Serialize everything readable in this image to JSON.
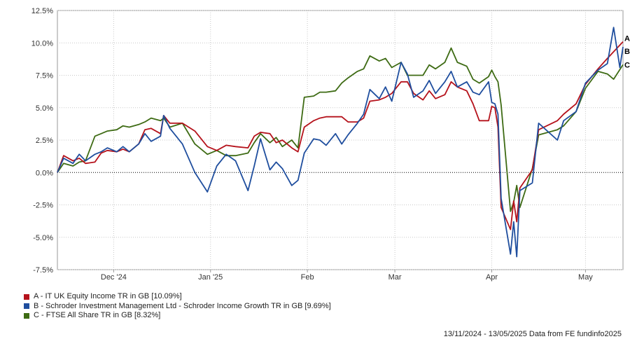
{
  "chart_data": {
    "type": "line",
    "ylim": [
      -7.5,
      12.5
    ],
    "yticks": [
      -7.5,
      -5.0,
      -2.5,
      0.0,
      2.5,
      5.0,
      7.5,
      10.0,
      12.5
    ],
    "ytick_labels": [
      "-7.5%",
      "-5.0%",
      "-2.5%",
      "0.0%",
      "2.5%",
      "5.0%",
      "7.5%",
      "10.0%",
      "12.5%"
    ],
    "xlim": [
      "2024-11-13",
      "2025-05-13"
    ],
    "xticks": [
      "2024-12-01",
      "2025-01-01",
      "2025-02-01",
      "2025-03-01",
      "2025-04-01",
      "2025-05-01"
    ],
    "xtick_labels": [
      "Dec '24",
      "Jan '25",
      "Feb",
      "Mar",
      "Apr",
      "May"
    ],
    "grid": true,
    "zero_line": true,
    "legend_position": "bottom-left",
    "series": [
      {
        "name": "A - IT UK Equity Income TR in GB [10.09%]",
        "end_label": "A",
        "color": "#b5121b",
        "points": [
          [
            "2024-11-13",
            0.0
          ],
          [
            "2024-11-15",
            1.3
          ],
          [
            "2024-11-18",
            0.9
          ],
          [
            "2024-11-20",
            1.1
          ],
          [
            "2024-11-22",
            0.7
          ],
          [
            "2024-11-25",
            0.8
          ],
          [
            "2024-11-27",
            1.5
          ],
          [
            "2024-11-29",
            1.7
          ],
          [
            "2024-12-02",
            1.6
          ],
          [
            "2024-12-04",
            1.8
          ],
          [
            "2024-12-06",
            1.6
          ],
          [
            "2024-12-09",
            2.2
          ],
          [
            "2024-12-11",
            3.3
          ],
          [
            "2024-12-13",
            3.4
          ],
          [
            "2024-12-16",
            3.0
          ],
          [
            "2024-12-17",
            4.4
          ],
          [
            "2024-12-19",
            3.8
          ],
          [
            "2024-12-23",
            3.8
          ],
          [
            "2024-12-27",
            3.2
          ],
          [
            "2024-12-31",
            2.0
          ],
          [
            "2025-01-03",
            1.7
          ],
          [
            "2025-01-06",
            2.1
          ],
          [
            "2025-01-09",
            2.0
          ],
          [
            "2025-01-13",
            1.9
          ],
          [
            "2025-01-15",
            2.8
          ],
          [
            "2025-01-17",
            3.1
          ],
          [
            "2025-01-20",
            3.0
          ],
          [
            "2025-01-22",
            2.3
          ],
          [
            "2025-01-24",
            2.5
          ],
          [
            "2025-01-27",
            1.9
          ],
          [
            "2025-01-29",
            1.6
          ],
          [
            "2025-01-31",
            3.5
          ],
          [
            "2025-02-03",
            4.0
          ],
          [
            "2025-02-05",
            4.2
          ],
          [
            "2025-02-07",
            4.3
          ],
          [
            "2025-02-10",
            4.3
          ],
          [
            "2025-02-12",
            4.3
          ],
          [
            "2025-02-14",
            3.9
          ],
          [
            "2025-02-17",
            3.9
          ],
          [
            "2025-02-19",
            4.2
          ],
          [
            "2025-02-21",
            5.5
          ],
          [
            "2025-02-24",
            5.6
          ],
          [
            "2025-02-26",
            5.8
          ],
          [
            "2025-02-28",
            6.1
          ],
          [
            "2025-03-03",
            7.0
          ],
          [
            "2025-03-05",
            7.0
          ],
          [
            "2025-03-07",
            6.1
          ],
          [
            "2025-03-10",
            5.6
          ],
          [
            "2025-03-12",
            6.3
          ],
          [
            "2025-03-14",
            5.7
          ],
          [
            "2025-03-17",
            6.0
          ],
          [
            "2025-03-19",
            7.0
          ],
          [
            "2025-03-21",
            6.6
          ],
          [
            "2025-03-24",
            6.3
          ],
          [
            "2025-03-26",
            5.3
          ],
          [
            "2025-03-28",
            4.0
          ],
          [
            "2025-03-31",
            4.0
          ],
          [
            "2025-04-01",
            5.1
          ],
          [
            "2025-04-02",
            5.0
          ],
          [
            "2025-04-03",
            3.5
          ],
          [
            "2025-04-04",
            -2.7
          ],
          [
            "2025-04-07",
            -4.4
          ],
          [
            "2025-04-08",
            -2.2
          ],
          [
            "2025-04-09",
            -3.8
          ],
          [
            "2025-04-10",
            -1.2
          ],
          [
            "2025-04-14",
            0.2
          ],
          [
            "2025-04-16",
            3.3
          ],
          [
            "2025-04-22",
            4.0
          ],
          [
            "2025-04-24",
            4.5
          ],
          [
            "2025-04-28",
            5.3
          ],
          [
            "2025-05-01",
            6.8
          ],
          [
            "2025-05-05",
            8.0
          ],
          [
            "2025-05-08",
            8.8
          ],
          [
            "2025-05-13",
            10.09
          ]
        ]
      },
      {
        "name": "B - Schroder Investment Management Ltd - Schroder Income Growth TR in GB [9.69%]",
        "end_label": "B",
        "color": "#1f4e9e",
        "points": [
          [
            "2024-11-13",
            0.0
          ],
          [
            "2024-11-15",
            1.1
          ],
          [
            "2024-11-18",
            0.7
          ],
          [
            "2024-11-20",
            1.4
          ],
          [
            "2024-11-22",
            0.9
          ],
          [
            "2024-11-25",
            1.4
          ],
          [
            "2024-11-27",
            1.6
          ],
          [
            "2024-11-29",
            1.9
          ],
          [
            "2024-12-02",
            1.6
          ],
          [
            "2024-12-04",
            2.0
          ],
          [
            "2024-12-06",
            1.6
          ],
          [
            "2024-12-09",
            2.2
          ],
          [
            "2024-12-11",
            3.0
          ],
          [
            "2024-12-13",
            2.4
          ],
          [
            "2024-12-16",
            2.8
          ],
          [
            "2024-12-17",
            4.4
          ],
          [
            "2024-12-19",
            3.4
          ],
          [
            "2024-12-23",
            2.2
          ],
          [
            "2024-12-27",
            0.0
          ],
          [
            "2024-12-31",
            -1.5
          ],
          [
            "2025-01-03",
            0.5
          ],
          [
            "2025-01-06",
            1.4
          ],
          [
            "2025-01-09",
            0.9
          ],
          [
            "2025-01-13",
            -1.4
          ],
          [
            "2025-01-15",
            0.5
          ],
          [
            "2025-01-17",
            2.6
          ],
          [
            "2025-01-20",
            0.2
          ],
          [
            "2025-01-22",
            0.8
          ],
          [
            "2025-01-24",
            0.3
          ],
          [
            "2025-01-27",
            -1.0
          ],
          [
            "2025-01-29",
            -0.6
          ],
          [
            "2025-01-31",
            1.5
          ],
          [
            "2025-02-03",
            2.6
          ],
          [
            "2025-02-05",
            2.5
          ],
          [
            "2025-02-07",
            2.1
          ],
          [
            "2025-02-10",
            3.0
          ],
          [
            "2025-02-12",
            2.2
          ],
          [
            "2025-02-14",
            2.9
          ],
          [
            "2025-02-17",
            3.8
          ],
          [
            "2025-02-19",
            4.5
          ],
          [
            "2025-02-21",
            6.4
          ],
          [
            "2025-02-24",
            5.7
          ],
          [
            "2025-02-26",
            6.6
          ],
          [
            "2025-02-28",
            5.5
          ],
          [
            "2025-03-03",
            8.5
          ],
          [
            "2025-03-05",
            7.6
          ],
          [
            "2025-03-07",
            5.8
          ],
          [
            "2025-03-10",
            6.3
          ],
          [
            "2025-03-12",
            7.1
          ],
          [
            "2025-03-14",
            6.1
          ],
          [
            "2025-03-17",
            7.0
          ],
          [
            "2025-03-19",
            7.8
          ],
          [
            "2025-03-21",
            6.6
          ],
          [
            "2025-03-24",
            7.0
          ],
          [
            "2025-03-26",
            6.2
          ],
          [
            "2025-03-28",
            6.0
          ],
          [
            "2025-03-31",
            7.0
          ],
          [
            "2025-04-01",
            5.4
          ],
          [
            "2025-04-02",
            5.3
          ],
          [
            "2025-04-03",
            4.5
          ],
          [
            "2025-04-04",
            -2.0
          ],
          [
            "2025-04-07",
            -6.3
          ],
          [
            "2025-04-08",
            -3.8
          ],
          [
            "2025-04-09",
            -6.5
          ],
          [
            "2025-04-10",
            -1.4
          ],
          [
            "2025-04-14",
            -0.8
          ],
          [
            "2025-04-16",
            3.8
          ],
          [
            "2025-04-22",
            2.5
          ],
          [
            "2025-04-24",
            4.0
          ],
          [
            "2025-04-28",
            4.7
          ],
          [
            "2025-05-01",
            6.9
          ],
          [
            "2025-05-05",
            7.9
          ],
          [
            "2025-05-08",
            8.4
          ],
          [
            "2025-05-10",
            11.2
          ],
          [
            "2025-05-12",
            8.1
          ],
          [
            "2025-05-13",
            9.69
          ]
        ]
      },
      {
        "name": "C - FTSE All Share TR in GB [8.32%]",
        "end_label": "C",
        "color": "#3e6b14",
        "points": [
          [
            "2024-11-13",
            0.0
          ],
          [
            "2024-11-15",
            0.7
          ],
          [
            "2024-11-18",
            0.5
          ],
          [
            "2024-11-20",
            0.8
          ],
          [
            "2024-11-22",
            0.9
          ],
          [
            "2024-11-25",
            2.8
          ],
          [
            "2024-11-27",
            3.0
          ],
          [
            "2024-11-29",
            3.2
          ],
          [
            "2024-12-02",
            3.3
          ],
          [
            "2024-12-04",
            3.6
          ],
          [
            "2024-12-06",
            3.5
          ],
          [
            "2024-12-09",
            3.7
          ],
          [
            "2024-12-11",
            3.9
          ],
          [
            "2024-12-13",
            4.2
          ],
          [
            "2024-12-16",
            4.0
          ],
          [
            "2024-12-17",
            4.2
          ],
          [
            "2024-12-19",
            3.5
          ],
          [
            "2024-12-23",
            3.8
          ],
          [
            "2024-12-27",
            2.2
          ],
          [
            "2024-12-31",
            1.4
          ],
          [
            "2025-01-03",
            1.7
          ],
          [
            "2025-01-06",
            1.3
          ],
          [
            "2025-01-09",
            1.3
          ],
          [
            "2025-01-13",
            1.5
          ],
          [
            "2025-01-15",
            2.3
          ],
          [
            "2025-01-17",
            3.0
          ],
          [
            "2025-01-20",
            2.3
          ],
          [
            "2025-01-22",
            2.7
          ],
          [
            "2025-01-24",
            2.0
          ],
          [
            "2025-01-27",
            2.5
          ],
          [
            "2025-01-29",
            1.9
          ],
          [
            "2025-01-31",
            5.8
          ],
          [
            "2025-02-03",
            5.9
          ],
          [
            "2025-02-05",
            6.2
          ],
          [
            "2025-02-07",
            6.2
          ],
          [
            "2025-02-10",
            6.3
          ],
          [
            "2025-02-12",
            6.9
          ],
          [
            "2025-02-14",
            7.3
          ],
          [
            "2025-02-17",
            7.8
          ],
          [
            "2025-02-19",
            8.0
          ],
          [
            "2025-02-21",
            9.0
          ],
          [
            "2025-02-24",
            8.6
          ],
          [
            "2025-02-26",
            8.8
          ],
          [
            "2025-02-28",
            8.1
          ],
          [
            "2025-03-03",
            8.5
          ],
          [
            "2025-03-05",
            7.5
          ],
          [
            "2025-03-07",
            7.5
          ],
          [
            "2025-03-10",
            7.5
          ],
          [
            "2025-03-12",
            8.3
          ],
          [
            "2025-03-14",
            8.0
          ],
          [
            "2025-03-17",
            8.5
          ],
          [
            "2025-03-19",
            9.6
          ],
          [
            "2025-03-21",
            8.5
          ],
          [
            "2025-03-24",
            8.2
          ],
          [
            "2025-03-26",
            7.2
          ],
          [
            "2025-03-28",
            6.9
          ],
          [
            "2025-03-31",
            7.4
          ],
          [
            "2025-04-01",
            7.9
          ],
          [
            "2025-04-02",
            7.4
          ],
          [
            "2025-04-03",
            7.0
          ],
          [
            "2025-04-04",
            5.2
          ],
          [
            "2025-04-07",
            -3.0
          ],
          [
            "2025-04-08",
            -2.3
          ],
          [
            "2025-04-09",
            -1.0
          ],
          [
            "2025-04-10",
            -2.7
          ],
          [
            "2025-04-14",
            0.3
          ],
          [
            "2025-04-16",
            2.9
          ],
          [
            "2025-04-22",
            3.3
          ],
          [
            "2025-04-24",
            3.6
          ],
          [
            "2025-04-28",
            4.7
          ],
          [
            "2025-05-01",
            6.5
          ],
          [
            "2025-05-05",
            7.8
          ],
          [
            "2025-05-08",
            7.6
          ],
          [
            "2025-05-10",
            7.2
          ],
          [
            "2025-05-13",
            8.32
          ]
        ]
      }
    ],
    "footer": "13/11/2024 - 13/05/2025 Data from FE fundinfo2025"
  },
  "colors": {
    "grid": "#c8c8c8",
    "axis": "#999999",
    "zero_line": "#000000"
  }
}
